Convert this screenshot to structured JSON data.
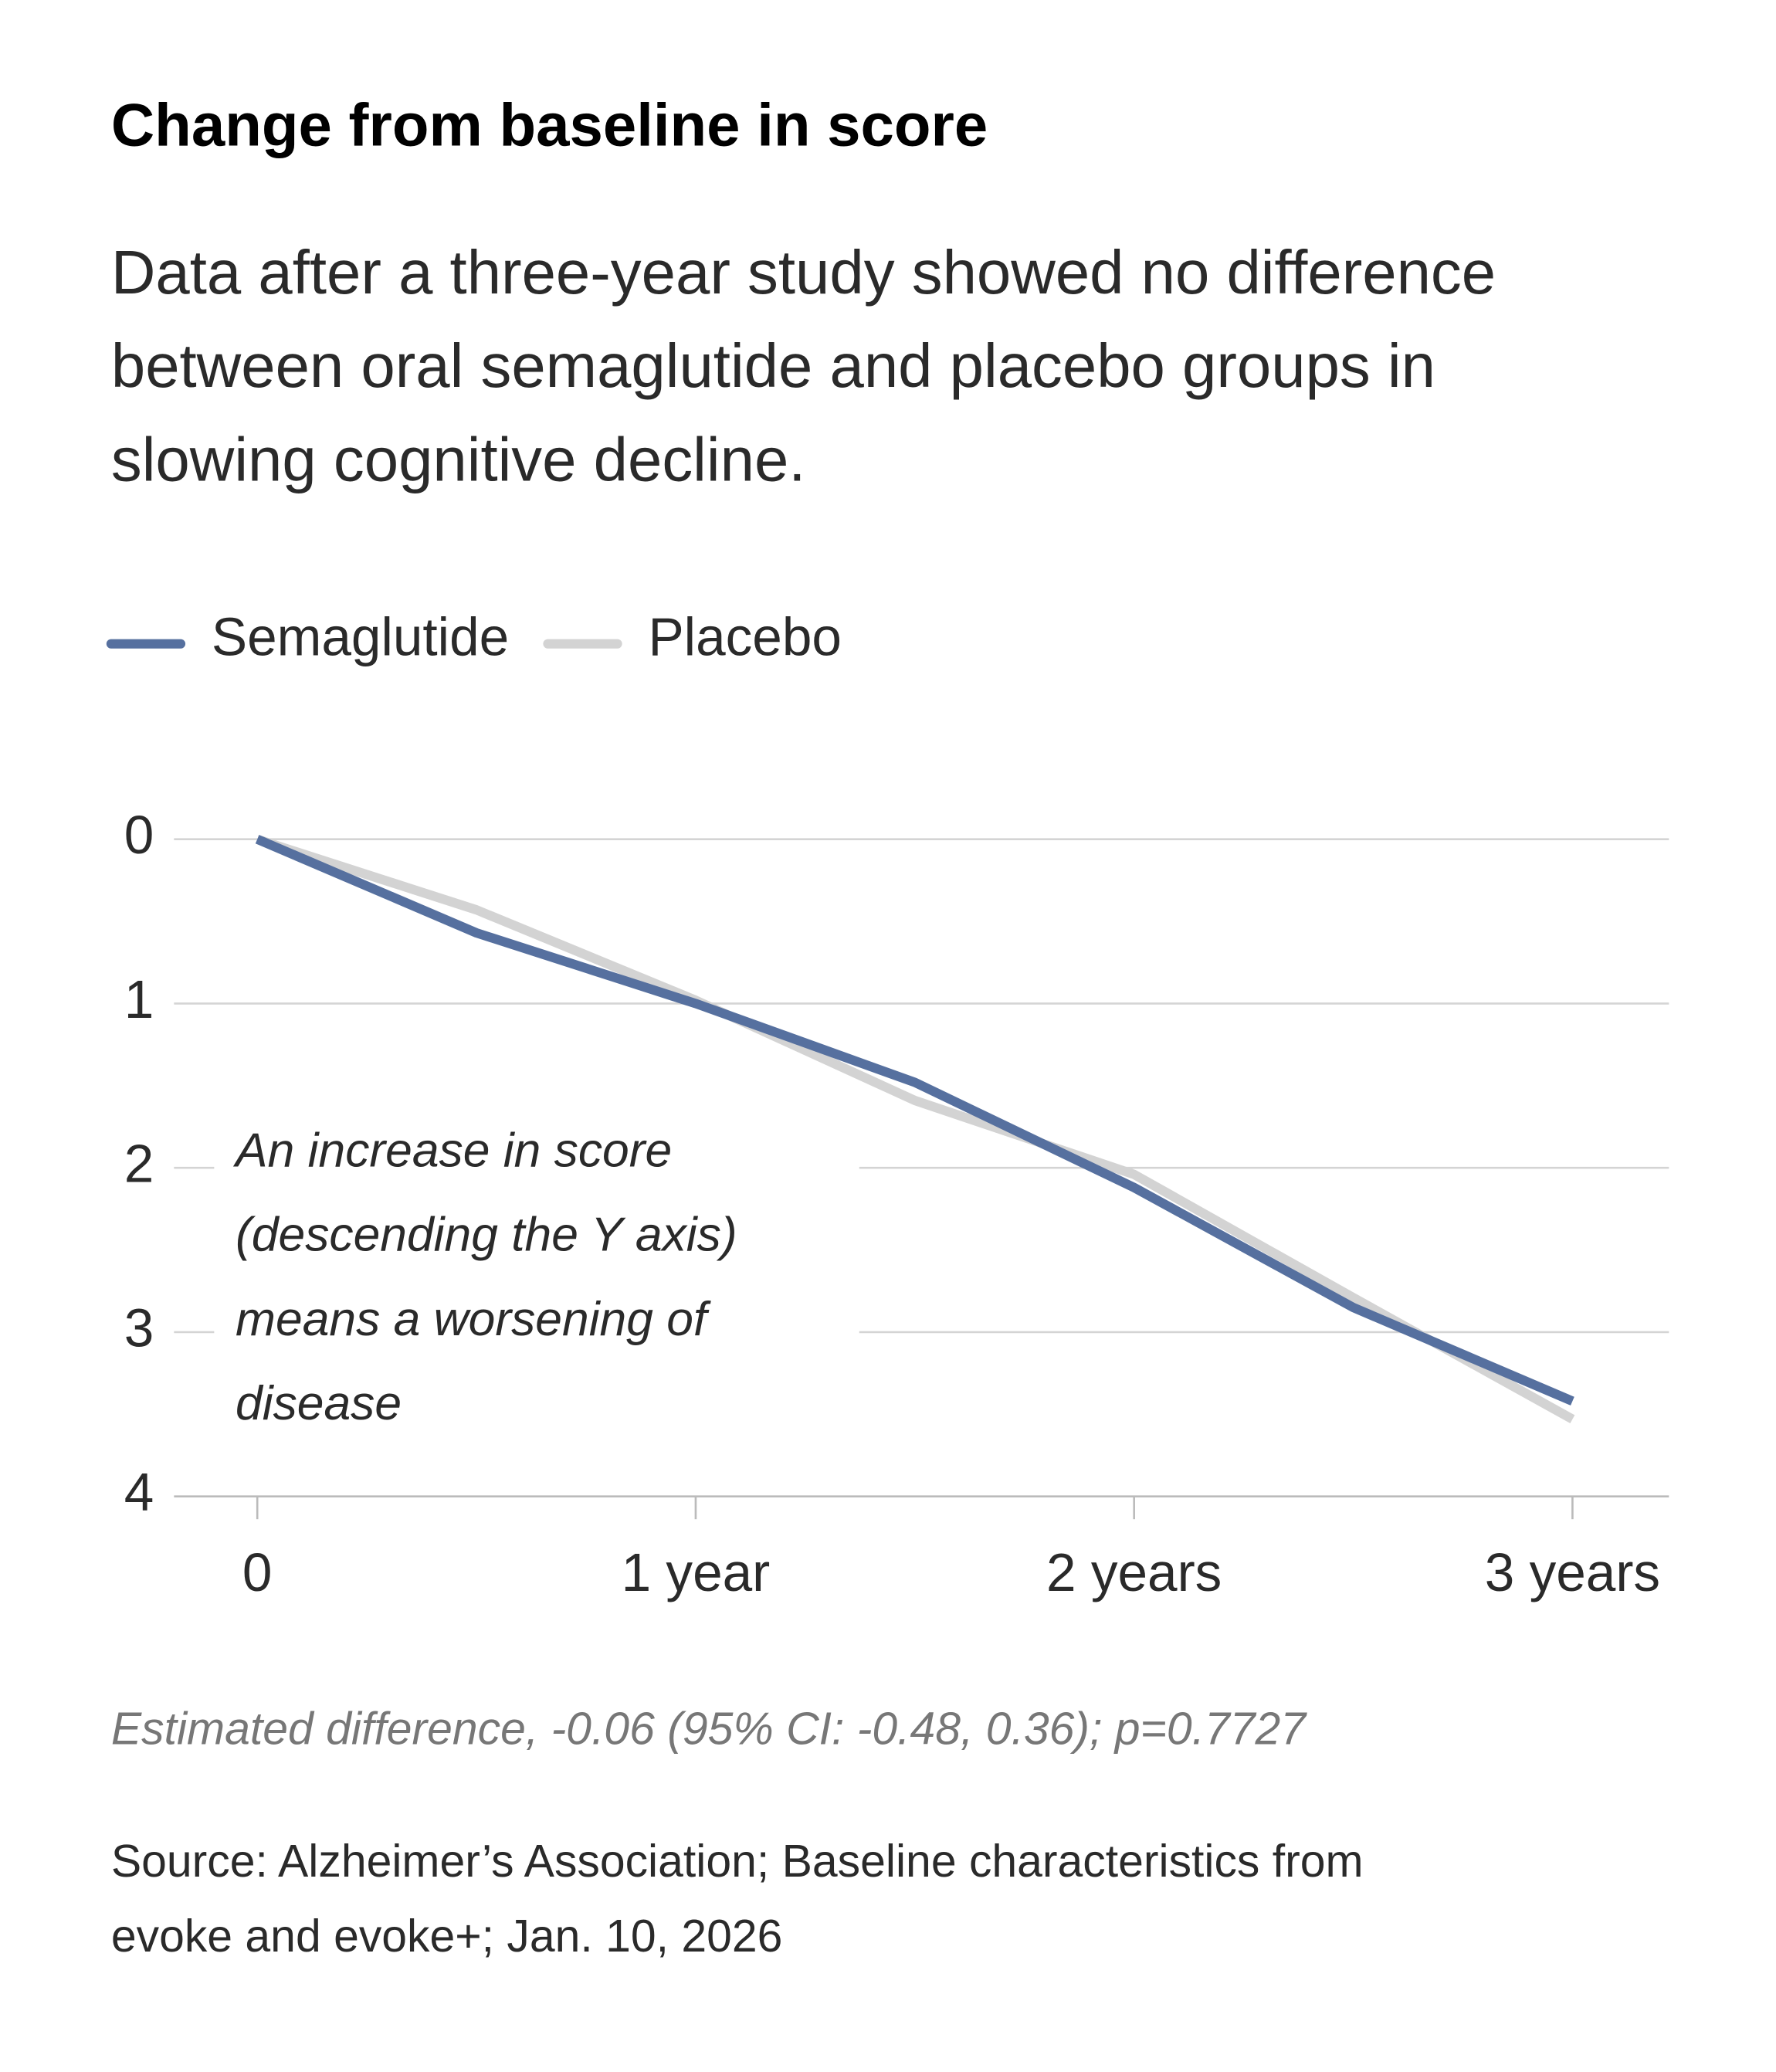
{
  "chart_data": {
    "type": "line",
    "title": "Change from baseline in score",
    "subtitle": [
      "Data after a three-year study showed no difference",
      "between oral semaglutide and placebo groups in",
      "slowing cognitive decline."
    ],
    "x": [
      0,
      0.5,
      1,
      1.5,
      2,
      2.5,
      3
    ],
    "series": [
      {
        "name": "Semaglutide",
        "color": "#56709f",
        "values": [
          0,
          0.57,
          1.0,
          1.48,
          2.12,
          2.85,
          3.42
        ]
      },
      {
        "name": "Placebo",
        "color": "#d3d3d3",
        "values": [
          0,
          0.43,
          0.98,
          1.59,
          2.04,
          2.79,
          3.53
        ]
      }
    ],
    "xlim": [
      -0.19,
      3.22
    ],
    "xticks": [
      0,
      {
        "value": 1,
        "label": "1 year"
      },
      {
        "value": 2,
        "label": "2 years"
      },
      {
        "value": 3,
        "label": "3 years"
      }
    ],
    "ylim": [
      0,
      4
    ],
    "y_inverted": true,
    "yticks": [
      0,
      1,
      2,
      3,
      4
    ],
    "grid": true,
    "legend": "top",
    "annotation": [
      "An increase in score",
      "(descending the Y axis)",
      "means a worsening of",
      "disease"
    ],
    "note": "Estimated difference, -0.06 (95% CI: -0.48, 0.36); p=0.7727",
    "source": [
      "Source: Alzheimer’s Association; Baseline characteristics from",
      "evoke and evoke+; Jan. 10, 2026"
    ]
  }
}
